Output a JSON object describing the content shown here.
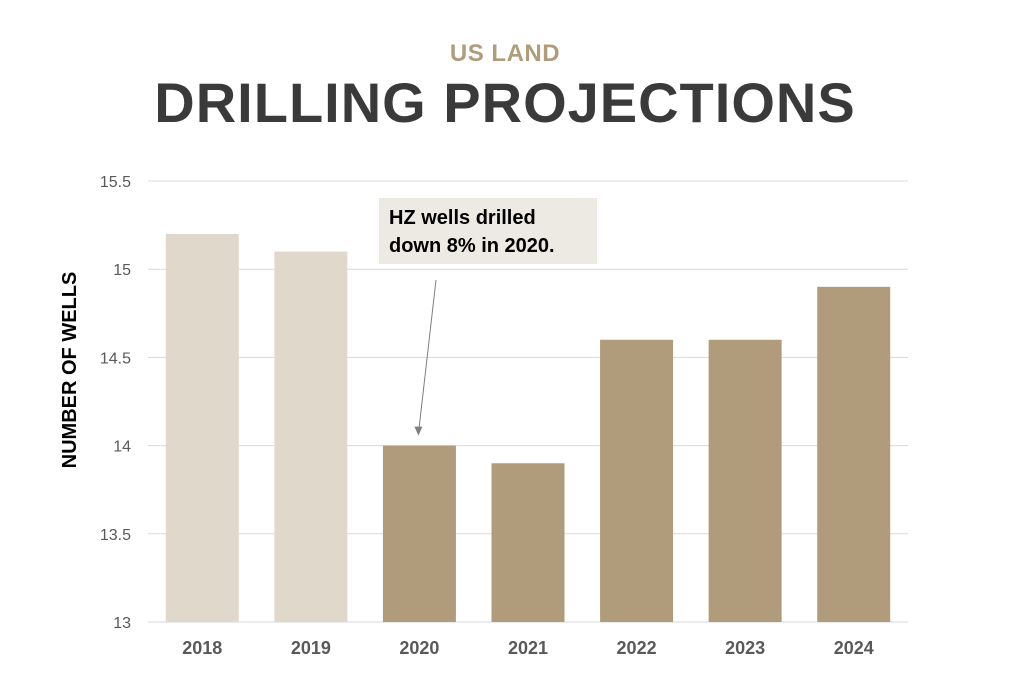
{
  "header": {
    "subtitle": "US LAND",
    "title": "DRILLING PROJECTIONS"
  },
  "colors": {
    "subtitle": "#b09c7a",
    "title": "#3a3a3a",
    "bar_light": "#e0d8cb",
    "bar_dark": "#b09c7a",
    "grid": "#d9d9d9",
    "annotation_bg": "#ede9e3",
    "arrow": "#7f7f7f"
  },
  "chart_data": {
    "type": "bar",
    "title": "DRILLING PROJECTIONS",
    "subtitle": "US LAND",
    "xlabel": "",
    "ylabel": "NUMBER OF WELLS",
    "categories": [
      "2018",
      "2019",
      "2020",
      "2021",
      "2022",
      "2023",
      "2024"
    ],
    "values": [
      15.2,
      15.1,
      14.0,
      13.9,
      14.6,
      14.6,
      14.9
    ],
    "bar_styles": [
      "light",
      "light",
      "dark",
      "dark",
      "dark",
      "dark",
      "dark"
    ],
    "ylim": [
      13,
      15.5
    ],
    "yticks": [
      "13",
      "13.5",
      "14",
      "14.5",
      "15",
      "15.5"
    ],
    "ytick_values": [
      13,
      13.5,
      14,
      14.5,
      15,
      15.5
    ],
    "grid": true,
    "legend": "none",
    "annotation": {
      "text_line1": "HZ wells drilled",
      "text_line2": "down 8% in 2020.",
      "target_category": "2020"
    }
  }
}
